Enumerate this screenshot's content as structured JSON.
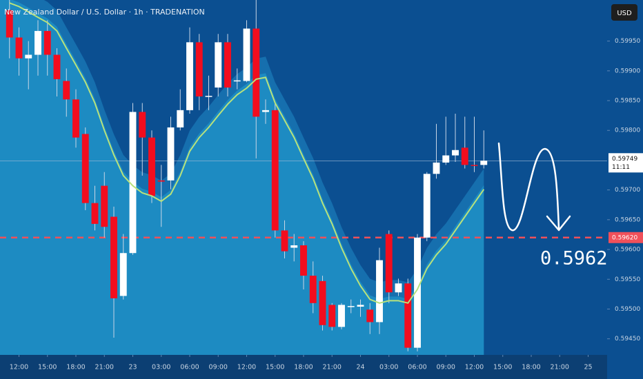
{
  "chart_data": {
    "type": "candlestick",
    "title": "New Zealand Dollar / U.S. Dollar · 1h · TRADENATION",
    "currency": "USD",
    "open": [
      0.60002,
      0.59956,
      0.59921,
      0.59927,
      0.59967,
      0.59927,
      0.59883,
      0.59852,
      0.59794,
      0.59678,
      0.59707,
      0.59655,
      0.59522,
      0.59594,
      0.59831,
      0.59788,
      0.59716,
      0.59716,
      0.59805,
      0.59834,
      0.59948,
      0.59857,
      0.59872,
      0.59948,
      0.59883,
      0.59883,
      0.59971,
      0.59831,
      0.59834,
      0.59632,
      0.59603,
      0.59607,
      0.59556,
      0.59547,
      0.59507,
      0.5947,
      0.59504,
      0.59504,
      0.59499,
      0.59478,
      0.59626,
      0.59528,
      0.59543,
      0.59435,
      0.5962,
      0.59727,
      0.59746,
      0.59758,
      0.59771,
      0.59742,
      0.59742
    ],
    "high": [
      0.60019,
      0.59973,
      0.5995,
      0.59985,
      0.59985,
      0.59938,
      0.59904,
      0.59869,
      0.59805,
      0.59707,
      0.5973,
      0.59672,
      0.59626,
      0.59846,
      0.59846,
      0.598,
      0.59742,
      0.59823,
      0.59869,
      0.59973,
      0.59962,
      0.59892,
      0.59962,
      0.59962,
      0.59904,
      0.59985,
      0.60019,
      0.59852,
      0.59846,
      0.59649,
      0.59626,
      0.59614,
      0.5958,
      0.59556,
      0.5951,
      0.5951,
      0.59516,
      0.59516,
      0.5951,
      0.59603,
      0.59632,
      0.59551,
      0.59551,
      0.59626,
      0.5973,
      0.59811,
      0.59823,
      0.59828,
      0.59823,
      0.59823,
      0.598
    ],
    "low": [
      0.59921,
      0.59892,
      0.59869,
      0.59892,
      0.59892,
      0.59857,
      0.59823,
      0.59771,
      0.59666,
      0.59632,
      0.5962,
      0.59452,
      0.59516,
      0.59591,
      0.59724,
      0.59678,
      0.59638,
      0.59701,
      0.598,
      0.59828,
      0.59834,
      0.59834,
      0.59857,
      0.59857,
      0.59869,
      0.59881,
      0.59753,
      0.59811,
      0.5962,
      0.59585,
      0.5958,
      0.59533,
      0.59493,
      0.59464,
      0.59464,
      0.59466,
      0.59493,
      0.59487,
      0.59458,
      0.59458,
      0.5951,
      0.59522,
      0.59429,
      0.59429,
      0.59614,
      0.59719,
      0.59742,
      0.59747,
      0.59736,
      0.5973,
      0.59736
    ],
    "close": [
      0.59956,
      0.59921,
      0.59927,
      0.59967,
      0.59927,
      0.59886,
      0.59852,
      0.59788,
      0.59678,
      0.59643,
      0.59638,
      0.59518,
      0.59594,
      0.59831,
      0.59788,
      0.5969,
      0.59714,
      0.59805,
      0.59834,
      0.59948,
      0.59857,
      0.59858,
      0.59948,
      0.59872,
      0.59884,
      0.59971,
      0.59823,
      0.59834,
      0.59632,
      0.59597,
      0.59607,
      0.59556,
      0.5951,
      0.59473,
      0.5947,
      0.59507,
      0.59505,
      0.59507,
      0.59478,
      0.59582,
      0.59528,
      0.59543,
      0.59435,
      0.5962,
      0.59727,
      0.59746,
      0.59758,
      0.59767,
      0.59742,
      0.59741,
      0.59749
    ],
    "up_color": "#ffffff",
    "down_color": "#f20d1e",
    "moving_average": {
      "color": "#b8e27c",
      "values": [
        0.60014,
        0.60008,
        0.59999,
        0.5999,
        0.59981,
        0.59967,
        0.59938,
        0.5991,
        0.59881,
        0.59846,
        0.598,
        0.59759,
        0.59724,
        0.59707,
        0.59695,
        0.5969,
        0.59681,
        0.59693,
        0.59724,
        0.59765,
        0.59788,
        0.59805,
        0.59825,
        0.59844,
        0.5986,
        0.59871,
        0.59886,
        0.59889,
        0.59846,
        0.59817,
        0.59788,
        0.59753,
        0.59719,
        0.59678,
        0.59643,
        0.59603,
        0.59568,
        0.59539,
        0.59516,
        0.5951,
        0.59514,
        0.59514,
        0.5951,
        0.59533,
        0.59568,
        0.59591,
        0.59609,
        0.59632,
        0.59655,
        0.59678,
        0.59701
      ]
    },
    "xlim": [
      -1,
      63
    ],
    "xticks": [
      {
        "value": 1,
        "label": "12:00"
      },
      {
        "value": 4,
        "label": "15:00"
      },
      {
        "value": 7,
        "label": "18:00"
      },
      {
        "value": 10,
        "label": "21:00"
      },
      {
        "value": 13,
        "label": "23"
      },
      {
        "value": 16,
        "label": "03:00"
      },
      {
        "value": 19,
        "label": "06:00"
      },
      {
        "value": 22,
        "label": "09:00"
      },
      {
        "value": 25,
        "label": "12:00"
      },
      {
        "value": 28,
        "label": "15:00"
      },
      {
        "value": 31,
        "label": "18:00"
      },
      {
        "value": 34,
        "label": "21:00"
      },
      {
        "value": 37,
        "label": "24"
      },
      {
        "value": 40,
        "label": "03:00"
      },
      {
        "value": 43,
        "label": "06:00"
      },
      {
        "value": 46,
        "label": "09:00"
      },
      {
        "value": 49,
        "label": "12:00"
      },
      {
        "value": 52,
        "label": "15:00"
      },
      {
        "value": 55,
        "label": "18:00"
      },
      {
        "value": 58,
        "label": "21:00"
      },
      {
        "value": 61,
        "label": "25"
      }
    ],
    "ylim": [
      0.59423,
      0.60019
    ],
    "yticks": [
      {
        "value": 0.5945,
        "label": "0.59450"
      },
      {
        "value": 0.595,
        "label": "0.59500"
      },
      {
        "value": 0.5955,
        "label": "0.59550"
      },
      {
        "value": 0.596,
        "label": "0.59600"
      },
      {
        "value": 0.5965,
        "label": "0.59650"
      },
      {
        "value": 0.597,
        "label": "0.59700"
      },
      {
        "value": 0.598,
        "label": "0.59800"
      },
      {
        "value": 0.5985,
        "label": "0.59850"
      },
      {
        "value": 0.599,
        "label": "0.59900"
      },
      {
        "value": 0.5995,
        "label": "0.59950"
      }
    ],
    "last_price": 0.59749,
    "countdown": "11:11",
    "level": {
      "value": 0.5962,
      "label": "0.59620",
      "color": "#f0505a"
    },
    "target_annotation": "0.5962"
  }
}
